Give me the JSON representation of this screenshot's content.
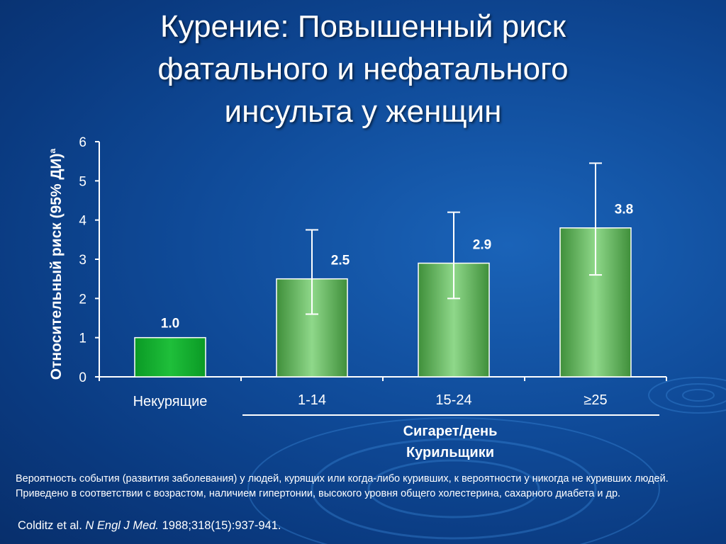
{
  "slide": {
    "title": "Курение: Повышенный риск\nфатального и нефатального\nинсульта у женщин",
    "group_label": "Сигарет/день\nКурильщики",
    "footnote": "Вероятность события (развития заболевания) у людей, курящих или когда-либо куривших, к вероятности у никогда не куривших людей. Приведено в соответствии с возрастом, наличием гипертонии, высокого уровня общего холестерина, сахарного диабета и др.",
    "citation": {
      "authors": "Colditz et al.",
      "journal": "N Engl J Med.",
      "details": "1988;318(15):937-941."
    }
  },
  "chart_data": {
    "type": "bar",
    "title": "",
    "ylabel": "Относительный риск  (95% ДИ)",
    "ylabel_superscript": "a",
    "xlabel": "Сигарет/день Курильщики",
    "ylim": [
      0,
      6
    ],
    "yticks": [
      0,
      1,
      2,
      3,
      4,
      5,
      6
    ],
    "grid": false,
    "categories": [
      "Некурящие",
      "1-14",
      "15-24",
      "≥25"
    ],
    "values": [
      1.0,
      2.5,
      2.9,
      3.8
    ],
    "value_labels": [
      "1.0",
      "2.5",
      "2.9",
      "3.8"
    ],
    "ci_low": [
      null,
      1.6,
      2.0,
      2.6
    ],
    "ci_high": [
      null,
      3.75,
      4.2,
      5.45
    ],
    "colors": {
      "reference_bar": "#1fbf3a",
      "smoker_bar": "#8fd88a",
      "axis": "#ffffff"
    }
  }
}
